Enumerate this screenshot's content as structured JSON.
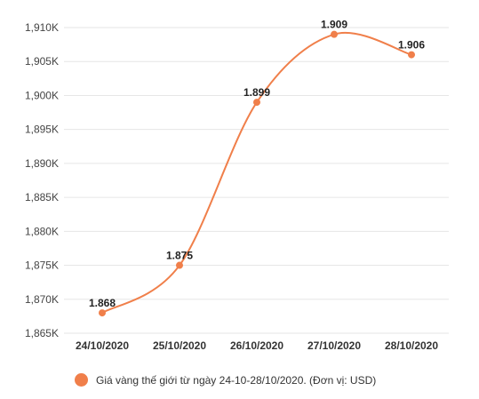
{
  "chart_data": {
    "type": "line",
    "categories": [
      "24/10/2020",
      "25/10/2020",
      "26/10/2020",
      "27/10/2020",
      "28/10/2020"
    ],
    "series": [
      {
        "name": "Giá vàng thế giới từ ngày 24-10-28/10/2020. (Đơn vị: USD)",
        "values": [
          1868,
          1875,
          1899,
          1909,
          1906
        ],
        "data_labels": [
          "1.868",
          "1.875",
          "1.899",
          "1.909",
          "1.906"
        ]
      }
    ],
    "y_ticks": [
      {
        "value": 1865,
        "label": "1,865K"
      },
      {
        "value": 1870,
        "label": "1,870K"
      },
      {
        "value": 1875,
        "label": "1,875K"
      },
      {
        "value": 1880,
        "label": "1,880K"
      },
      {
        "value": 1885,
        "label": "1,885K"
      },
      {
        "value": 1890,
        "label": "1,890K"
      },
      {
        "value": 1895,
        "label": "1,895K"
      },
      {
        "value": 1900,
        "label": "1,900K"
      },
      {
        "value": 1905,
        "label": "1,905K"
      },
      {
        "value": 1910,
        "label": "1,910K"
      }
    ],
    "ylim": [
      1865,
      1910
    ],
    "grid": true,
    "legend_position": "bottom",
    "title": "",
    "xlabel": "",
    "ylabel": "",
    "colors": {
      "line": "#f07f4a",
      "point": "#f07f4a",
      "grid": "#e6e6e6"
    }
  }
}
